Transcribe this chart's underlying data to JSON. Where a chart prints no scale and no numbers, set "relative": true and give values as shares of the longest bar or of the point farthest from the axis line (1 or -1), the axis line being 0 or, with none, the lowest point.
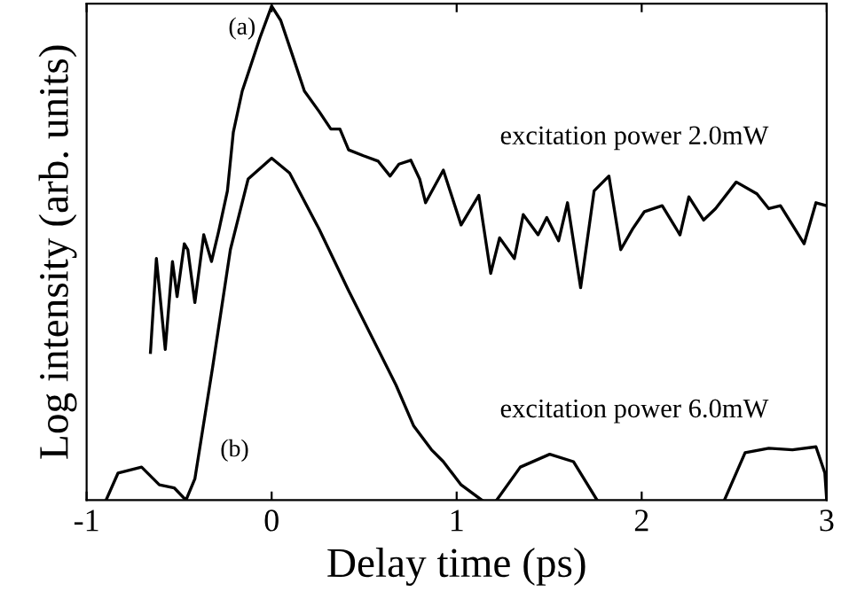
{
  "chart_data": {
    "type": "line",
    "xlabel": "Delay time (ps)",
    "ylabel": "Log intensity (arb. units)",
    "relative": true,
    "xlim": [
      -1,
      3
    ],
    "xticks": [
      -1,
      0,
      1,
      2,
      3
    ],
    "grid": false,
    "legend": false,
    "marker": "none",
    "line_style": "solid",
    "annotations": [
      "(a)",
      "(b)"
    ],
    "series": [
      {
        "name": "excitation power 2.0mW",
        "color": "#000000",
        "x": [
          -0.655,
          -0.623,
          -0.575,
          -0.536,
          -0.511,
          -0.472,
          -0.453,
          -0.415,
          -0.367,
          -0.325,
          -0.287,
          -0.239,
          -0.207,
          -0.159,
          -0.127,
          -0.063,
          0.0,
          0.049,
          0.113,
          0.177,
          0.256,
          0.32,
          0.369,
          0.416,
          0.496,
          0.576,
          0.64,
          0.688,
          0.752,
          0.8,
          0.832,
          0.928,
          1.024,
          1.12,
          1.184,
          1.232,
          1.312,
          1.36,
          1.44,
          1.487,
          1.551,
          1.599,
          1.67,
          1.743,
          1.823,
          1.887,
          1.951,
          2.015,
          2.111,
          2.207,
          2.255,
          2.335,
          2.399,
          2.511,
          2.623,
          2.687,
          2.75,
          2.878,
          2.942,
          3.0
        ],
        "values": [
          0.299,
          0.489,
          0.305,
          0.483,
          0.412,
          0.519,
          0.507,
          0.4,
          0.537,
          0.483,
          0.543,
          0.626,
          0.745,
          0.828,
          0.864,
          0.936,
          1.0,
          0.971,
          0.9,
          0.828,
          0.787,
          0.751,
          0.751,
          0.709,
          0.697,
          0.686,
          0.656,
          0.68,
          0.688,
          0.65,
          0.602,
          0.668,
          0.557,
          0.617,
          0.459,
          0.531,
          0.489,
          0.578,
          0.537,
          0.572,
          0.525,
          0.602,
          0.43,
          0.626,
          0.656,
          0.507,
          0.549,
          0.584,
          0.596,
          0.537,
          0.614,
          0.567,
          0.59,
          0.644,
          0.62,
          0.59,
          0.596,
          0.519,
          0.602,
          0.596
        ]
      },
      {
        "name": "excitation power 6.0mW",
        "color": "#000000",
        "x": [
          -0.895,
          -0.83,
          -0.703,
          -0.607,
          -0.527,
          -0.463,
          -0.415,
          -0.319,
          -0.223,
          -0.127,
          0.0,
          0.097,
          0.256,
          0.416,
          0.576,
          0.672,
          0.768,
          0.864,
          0.928,
          1.024,
          1.136,
          1.18,
          1.216,
          1.344,
          1.503,
          1.631,
          1.759,
          2.1,
          2.447,
          2.559,
          2.687,
          2.815,
          2.942,
          2.99,
          3.0
        ],
        "values": [
          0.0,
          0.055,
          0.067,
          0.031,
          0.025,
          0.0,
          0.043,
          0.269,
          0.507,
          0.65,
          0.692,
          0.662,
          0.549,
          0.424,
          0.305,
          0.233,
          0.15,
          0.102,
          0.078,
          0.031,
          0.0,
          null,
          0.0,
          0.067,
          0.093,
          0.078,
          0.0,
          null,
          0.0,
          0.096,
          0.105,
          0.102,
          0.108,
          0.055,
          0.0
        ]
      }
    ]
  }
}
